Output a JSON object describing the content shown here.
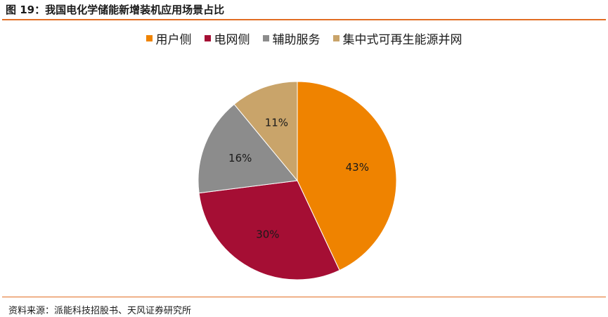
{
  "figure_title": "图 19：我国电化学储能新增装机应用场景占比",
  "source_note": "资料来源：派能科技招股书、天风证券研究所",
  "chart_data": {
    "type": "pie",
    "title": "",
    "categories": [
      "用户侧",
      "电网侧",
      "辅助服务",
      "集中式可再生能源并网"
    ],
    "values": [
      43,
      30,
      16,
      11
    ],
    "value_labels": [
      "43%",
      "30%",
      "16%",
      "11%"
    ],
    "colors": [
      "#ef8300",
      "#a50e34",
      "#8c8c8c",
      "#c9a46a"
    ],
    "legend_position": "top"
  }
}
